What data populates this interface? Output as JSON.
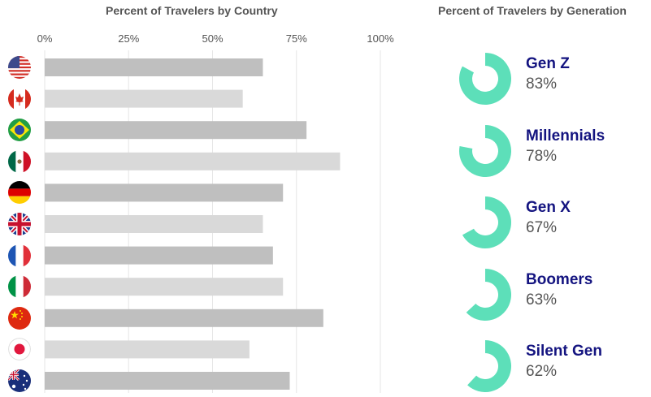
{
  "chart_data": [
    {
      "type": "bar",
      "orientation": "horizontal",
      "title": "Percent of Travelers by Country",
      "x_ticks": [
        "0%",
        "25%",
        "50%",
        "75%",
        "100%"
      ],
      "xlim": [
        0,
        100
      ],
      "grid": true,
      "categories": [
        "us-flag-icon",
        "canada-flag-icon",
        "brazil-flag-icon",
        "mexico-flag-icon",
        "germany-flag-icon",
        "uk-flag-icon",
        "france-flag-icon",
        "italy-flag-icon",
        "china-flag-icon",
        "japan-flag-icon",
        "australia-flag-icon"
      ],
      "values": [
        65,
        59,
        78,
        88,
        71,
        65,
        68,
        71,
        83,
        61,
        73
      ],
      "bar_colors": [
        "#bfbfbf",
        "#d9d9d9"
      ]
    },
    {
      "type": "pie",
      "style": "donut",
      "title": "Percent of Travelers by Generation",
      "categories": [
        "Gen Z",
        "Millennials",
        "Gen X",
        "Boomers",
        "Silent Gen"
      ],
      "value_labels": [
        "83%",
        "78%",
        "67%",
        "63%",
        "62%"
      ],
      "values": [
        83,
        78,
        67,
        63,
        62
      ],
      "color": "#5ddfb9"
    }
  ],
  "colors": {
    "label_text": "#141480",
    "value_text": "#555555",
    "title_text": "#555555",
    "donut": "#5ddfb9"
  }
}
